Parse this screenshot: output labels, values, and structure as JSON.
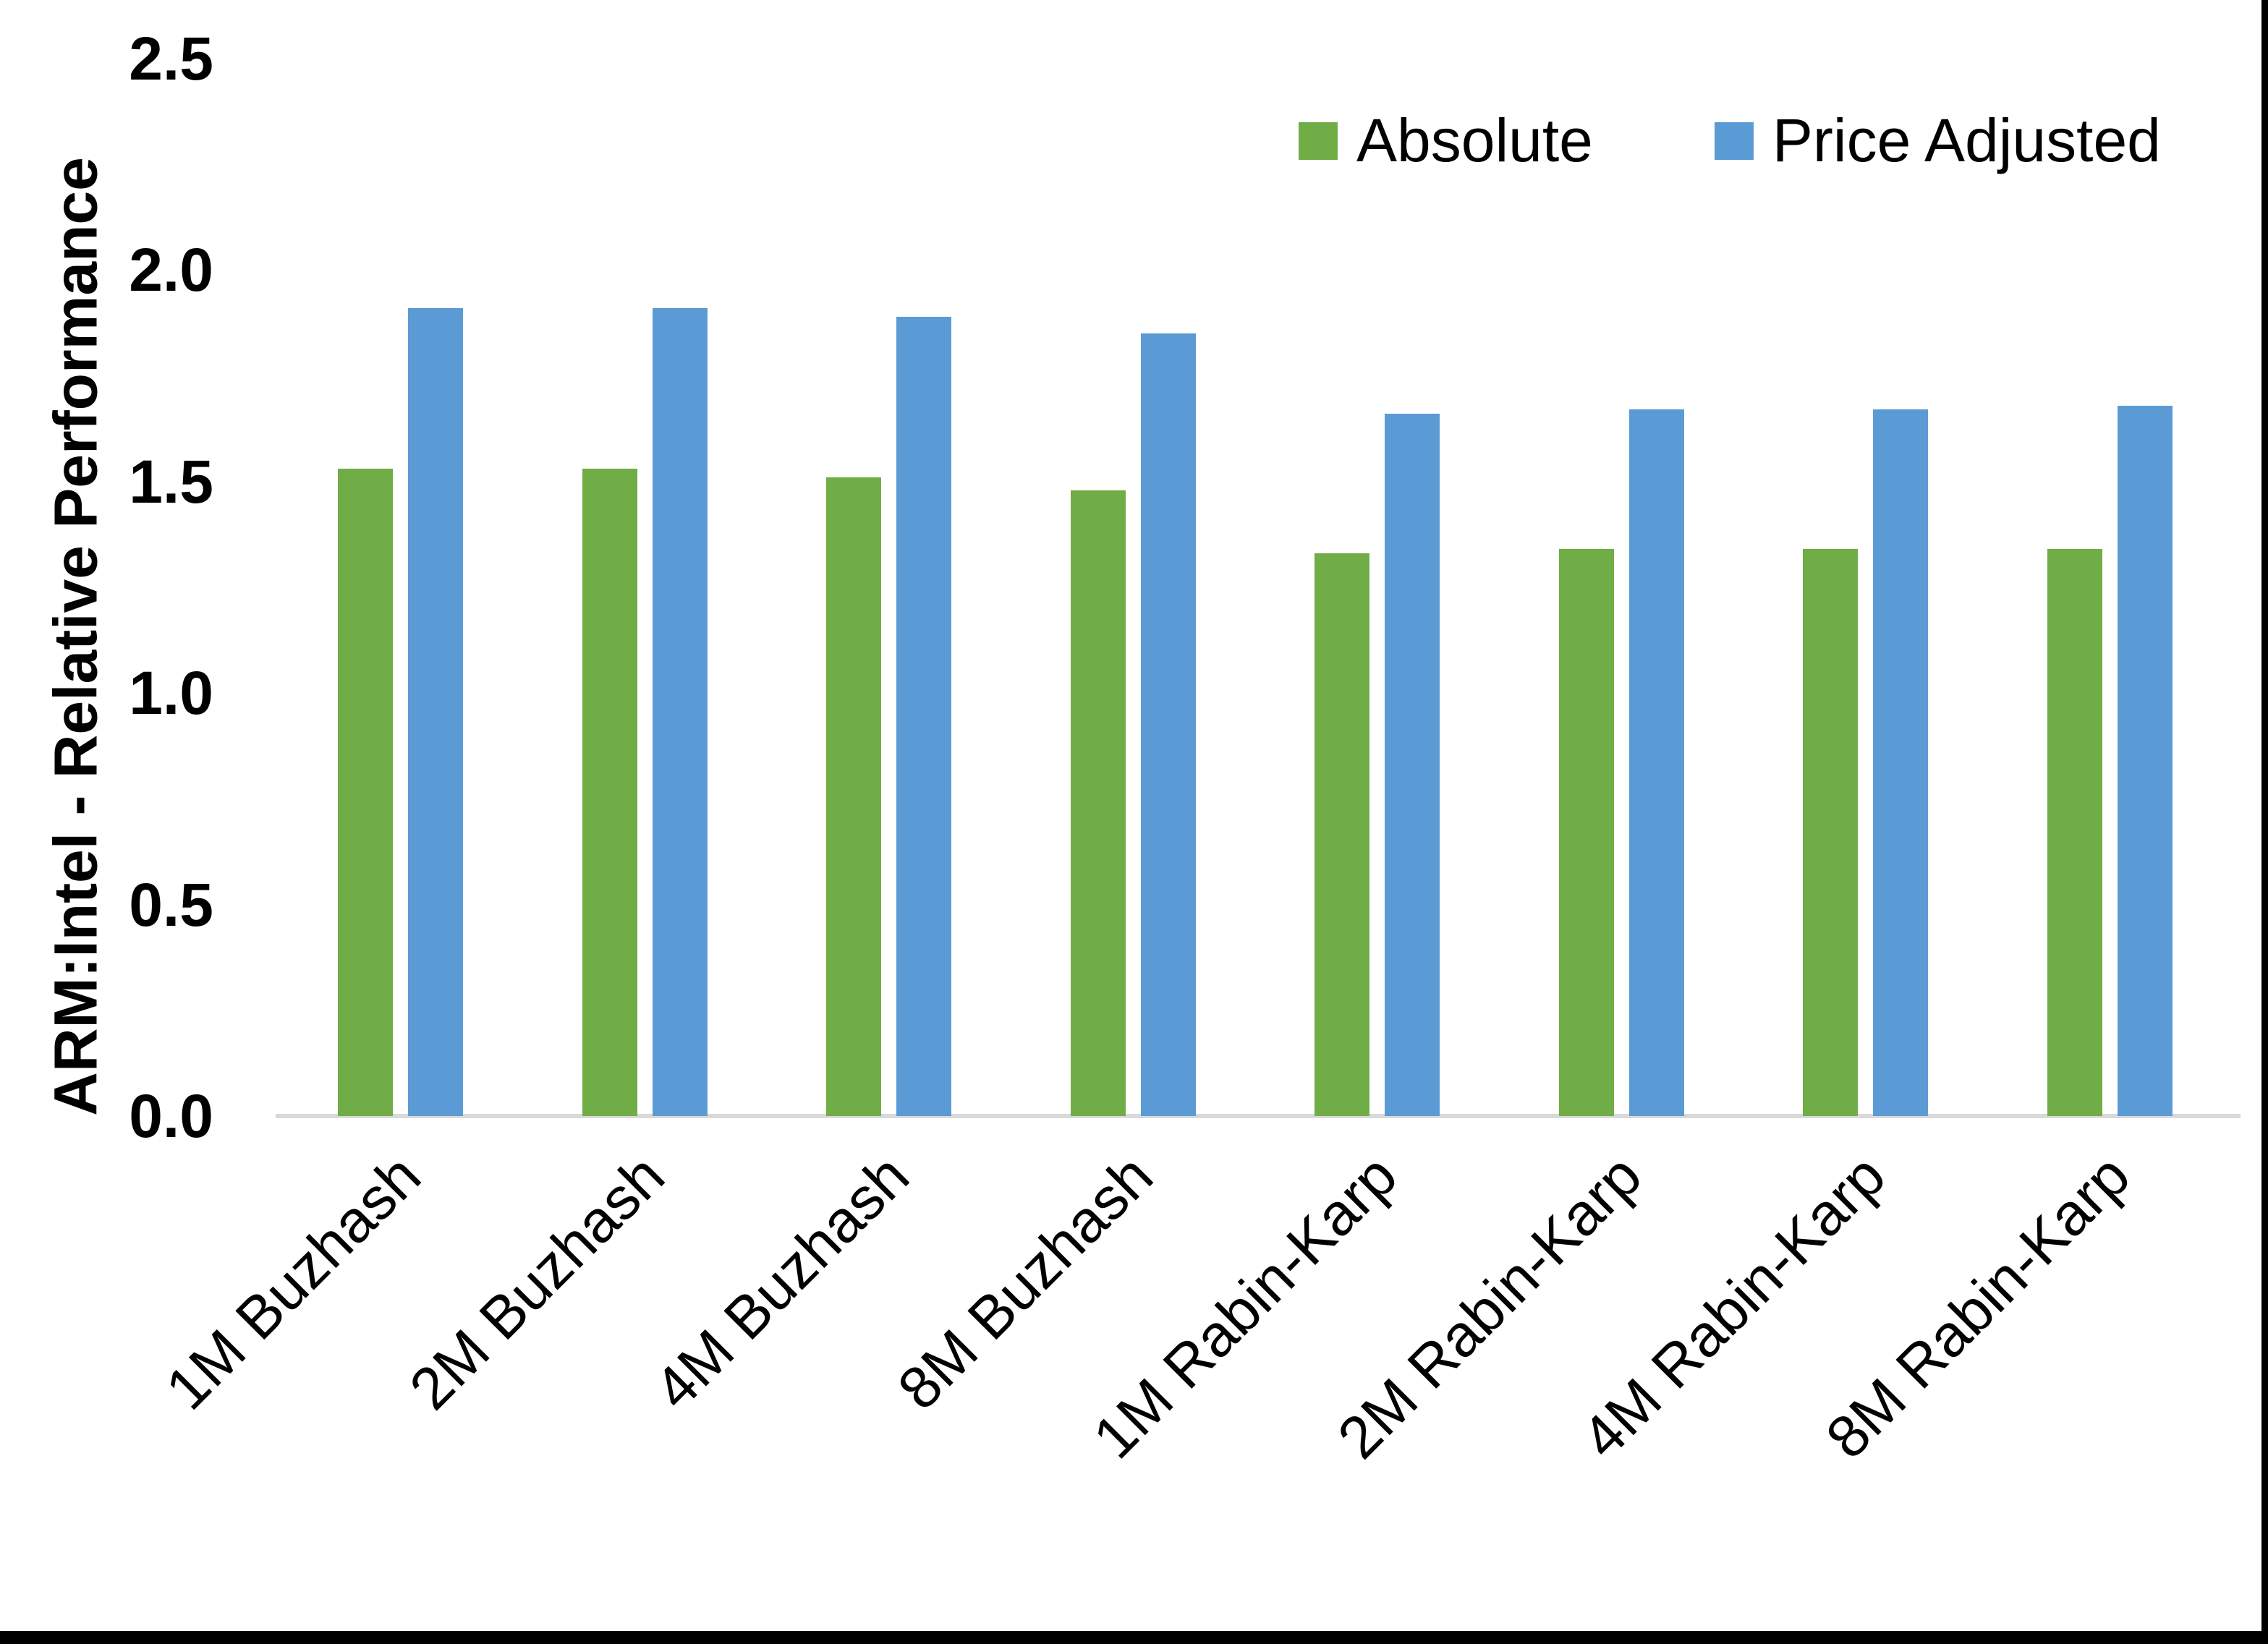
{
  "page": {
    "background": "#ffffff",
    "frame_border_color": "#000000"
  },
  "chart_data": {
    "type": "bar",
    "title": "",
    "categories": [
      "1M Buzhash",
      "2M Buzhash",
      "4M Buzhash",
      "8M Buzhash",
      "1M Rabin-Karp",
      "2M Rabin-Karp",
      "4M Rabin-Karp",
      "8M Rabin-Karp"
    ],
    "series": [
      {
        "name": "Absolute",
        "color": "#70AD47",
        "values": [
          1.53,
          1.53,
          1.51,
          1.48,
          1.33,
          1.34,
          1.34,
          1.34
        ]
      },
      {
        "name": "Price Adjusted",
        "color": "#5B9BD5",
        "values": [
          1.91,
          1.91,
          1.89,
          1.85,
          1.66,
          1.67,
          1.67,
          1.68
        ]
      }
    ],
    "xlabel": "",
    "ylabel": "ARM:Intel - Relative Performance",
    "ylim": [
      0,
      2.5
    ],
    "yticks": [
      "0.0",
      "0.5",
      "1.0",
      "1.5",
      "2.0",
      "2.5"
    ],
    "grid": false,
    "legend_position": "top-right",
    "axis_line_color": "#d9d9d9",
    "text_color": "#000000"
  }
}
